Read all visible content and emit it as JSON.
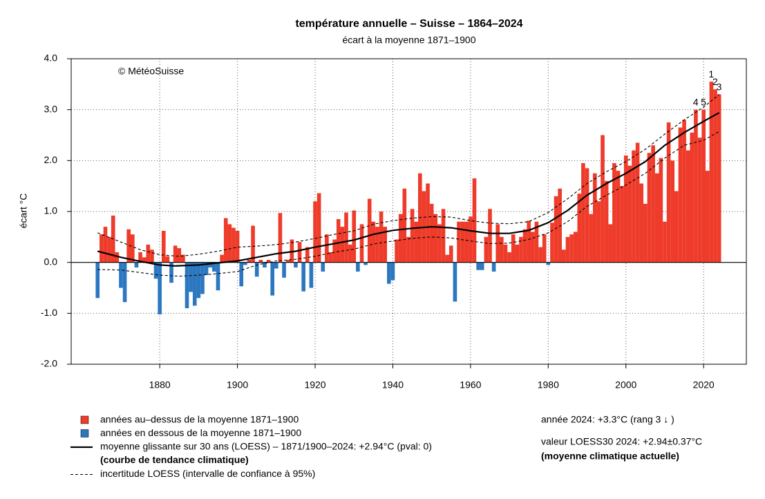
{
  "chart_data": {
    "type": "bar",
    "title": "température annuelle – Suisse – 1864–2024",
    "subtitle": "écart à la moyenne 1871–1900",
    "credit": "© MétéoSuisse",
    "ylabel": "écart °C",
    "above_color": "#ee3b2a",
    "below_color": "#2b77c0",
    "xlim": [
      1857.2,
      2031
    ],
    "ylim": [
      -2,
      4
    ],
    "xticks": [
      1880,
      1900,
      1920,
      1940,
      1960,
      1980,
      2000,
      2020
    ],
    "yticks": [
      {
        "value": -2,
        "label": "-2.0"
      },
      {
        "value": -1,
        "label": "-1.0"
      },
      {
        "value": 0,
        "label": "0.0"
      },
      {
        "value": 1,
        "label": "1.0"
      },
      {
        "value": 2,
        "label": "2.0"
      },
      {
        "value": 3,
        "label": "3.0"
      },
      {
        "value": 4,
        "label": "4.0"
      }
    ],
    "grid": true,
    "x": [
      1864,
      1865,
      1866,
      1867,
      1868,
      1869,
      1870,
      1871,
      1872,
      1873,
      1874,
      1875,
      1876,
      1877,
      1878,
      1879,
      1880,
      1881,
      1882,
      1883,
      1884,
      1885,
      1886,
      1887,
      1888,
      1889,
      1890,
      1891,
      1892,
      1893,
      1894,
      1895,
      1896,
      1897,
      1898,
      1899,
      1900,
      1901,
      1902,
      1903,
      1904,
      1905,
      1906,
      1907,
      1908,
      1909,
      1910,
      1911,
      1912,
      1913,
      1914,
      1915,
      1916,
      1917,
      1918,
      1919,
      1920,
      1921,
      1922,
      1923,
      1924,
      1925,
      1926,
      1927,
      1928,
      1929,
      1930,
      1931,
      1932,
      1933,
      1934,
      1935,
      1936,
      1937,
      1938,
      1939,
      1940,
      1941,
      1942,
      1943,
      1944,
      1945,
      1946,
      1947,
      1948,
      1949,
      1950,
      1951,
      1952,
      1953,
      1954,
      1955,
      1956,
      1957,
      1958,
      1959,
      1960,
      1961,
      1962,
      1963,
      1964,
      1965,
      1966,
      1967,
      1968,
      1969,
      1970,
      1971,
      1972,
      1973,
      1974,
      1975,
      1976,
      1977,
      1978,
      1979,
      1980,
      1981,
      1982,
      1983,
      1984,
      1985,
      1986,
      1987,
      1988,
      1989,
      1990,
      1991,
      1992,
      1993,
      1994,
      1995,
      1996,
      1997,
      1998,
      1999,
      2000,
      2001,
      2002,
      2003,
      2004,
      2005,
      2006,
      2007,
      2008,
      2009,
      2010,
      2011,
      2012,
      2013,
      2014,
      2015,
      2016,
      2017,
      2018,
      2019,
      2020,
      2021,
      2022,
      2023,
      2024
    ],
    "values": [
      -0.7,
      0.55,
      0.7,
      0.5,
      0.92,
      0.2,
      -0.5,
      -0.78,
      0.65,
      0.55,
      -0.1,
      0.2,
      0.1,
      0.35,
      0.25,
      -0.32,
      -1.02,
      0.62,
      0.12,
      -0.4,
      0.33,
      0.28,
      0.15,
      -0.9,
      -0.58,
      -0.85,
      -0.7,
      -0.62,
      -0.25,
      -0.1,
      -0.18,
      -0.55,
      0.15,
      0.87,
      0.75,
      0.68,
      0.62,
      -0.47,
      -0.05,
      0.05,
      0.72,
      -0.28,
      0.05,
      -0.1,
      0.05,
      -0.65,
      -0.12,
      0.97,
      -0.3,
      0.05,
      0.45,
      -0.1,
      0.4,
      -0.57,
      0.3,
      -0.5,
      1.2,
      1.36,
      -0.18,
      0.55,
      0.2,
      0.45,
      0.85,
      0.7,
      0.98,
      0.35,
      1.02,
      -0.18,
      0.75,
      -0.05,
      1.25,
      0.8,
      0.7,
      1.0,
      0.7,
      -0.42,
      -0.35,
      0.45,
      0.95,
      1.45,
      0.5,
      1.05,
      0.8,
      1.75,
      1.4,
      1.55,
      1.15,
      0.95,
      0.75,
      1.05,
      0.15,
      0.33,
      -0.77,
      0.8,
      0.8,
      0.8,
      0.9,
      1.65,
      -0.15,
      -0.15,
      0.5,
      1.05,
      -0.18,
      0.75,
      0.5,
      0.35,
      0.2,
      0.55,
      0.35,
      0.5,
      0.65,
      0.82,
      0.6,
      0.8,
      0.3,
      0.55,
      -0.05,
      0.78,
      1.3,
      1.45,
      0.25,
      0.5,
      0.55,
      0.6,
      1.35,
      1.95,
      1.85,
      0.95,
      1.75,
      1.2,
      2.5,
      1.6,
      0.75,
      1.95,
      1.8,
      1.5,
      2.1,
      1.9,
      2.2,
      2.35,
      1.55,
      1.15,
      2.15,
      2.3,
      1.75,
      2.05,
      0.8,
      2.75,
      2.0,
      1.4,
      2.65,
      2.8,
      2.2,
      2.55,
      3.0,
      2.45,
      3.0,
      1.8,
      3.55,
      3.4,
      3.3
    ],
    "lines": [
      {
        "style": "solid",
        "color": "#000000",
        "x": [
          1864,
          1870,
          1875,
          1880,
          1884,
          1890,
          1895,
          1900,
          1905,
          1910,
          1915,
          1920,
          1925,
          1930,
          1935,
          1940,
          1945,
          1950,
          1955,
          1960,
          1965,
          1970,
          1975,
          1980,
          1985,
          1990,
          1995,
          2000,
          2005,
          2010,
          2015,
          2020,
          2024
        ],
        "values": [
          0.22,
          0.1,
          0.02,
          -0.05,
          -0.07,
          -0.05,
          -0.01,
          0.03,
          0.1,
          0.17,
          0.22,
          0.3,
          0.37,
          0.44,
          0.55,
          0.63,
          0.67,
          0.7,
          0.68,
          0.62,
          0.57,
          0.57,
          0.63,
          0.78,
          1.02,
          1.32,
          1.55,
          1.75,
          1.98,
          2.3,
          2.55,
          2.77,
          2.94
        ]
      },
      {
        "style": "dashed",
        "color": "#000000",
        "x": [
          1864,
          1870,
          1875,
          1880,
          1885,
          1890,
          1895,
          1900,
          1905,
          1910,
          1915,
          1920,
          1925,
          1930,
          1935,
          1940,
          1945,
          1950,
          1955,
          1960,
          1965,
          1970,
          1975,
          1980,
          1985,
          1990,
          1995,
          2000,
          2005,
          2010,
          2015,
          2020,
          2024
        ],
        "values": [
          0.58,
          0.4,
          0.25,
          0.15,
          0.12,
          0.16,
          0.22,
          0.3,
          0.32,
          0.35,
          0.4,
          0.47,
          0.55,
          0.62,
          0.75,
          0.82,
          0.87,
          0.9,
          0.89,
          0.82,
          0.77,
          0.76,
          0.8,
          0.98,
          1.25,
          1.55,
          1.78,
          1.98,
          2.22,
          2.52,
          2.8,
          3.05,
          3.3
        ]
      },
      {
        "style": "dashed",
        "color": "#000000",
        "x": [
          1864,
          1870,
          1875,
          1880,
          1885,
          1890,
          1895,
          1900,
          1905,
          1910,
          1915,
          1920,
          1925,
          1930,
          1935,
          1940,
          1945,
          1950,
          1955,
          1960,
          1965,
          1970,
          1975,
          1980,
          1985,
          1990,
          1995,
          2000,
          2005,
          2010,
          2015,
          2020,
          2024
        ],
        "values": [
          -0.14,
          -0.15,
          -0.2,
          -0.25,
          -0.27,
          -0.25,
          -0.22,
          -0.18,
          -0.05,
          0.03,
          0.06,
          0.12,
          0.2,
          0.26,
          0.36,
          0.42,
          0.47,
          0.5,
          0.48,
          0.42,
          0.37,
          0.38,
          0.45,
          0.58,
          0.8,
          1.1,
          1.32,
          1.52,
          1.75,
          2.05,
          2.3,
          2.4,
          2.57
        ]
      }
    ],
    "ranks": [
      {
        "label": "1",
        "x": 2022
      },
      {
        "label": "2",
        "x": 2023
      },
      {
        "label": "3",
        "x": 2024
      },
      {
        "label": "4",
        "x": 2018
      },
      {
        "label": "5",
        "x": 2020
      }
    ],
    "legend": [
      {
        "symbol": "box",
        "color": "#ee3b2a",
        "label": "années au–dessus de la moyenne 1871–1900"
      },
      {
        "symbol": "box",
        "color": "#2b77c0",
        "label": "années en dessous de la moyenne 1871–1900"
      },
      {
        "symbol": "solid",
        "color": "#000000",
        "label": "moyenne glissante sur 30 ans (LOESS) – 1871/1900–2024: +2.94°C (pval: 0)",
        "sublabel": "(courbe de tendance climatique)"
      },
      {
        "symbol": "dashed",
        "color": "#000000",
        "label": "incertitude LOESS (intervalle de confiance à 95%)"
      }
    ],
    "info": [
      {
        "label": "année 2024: +3.3°C (rang 3 ↓ )"
      },
      {
        "label": "valeur LOESS30 2024: +2.94±0.37°C",
        "sublabel": "(moyenne climatique actuelle)"
      }
    ]
  }
}
